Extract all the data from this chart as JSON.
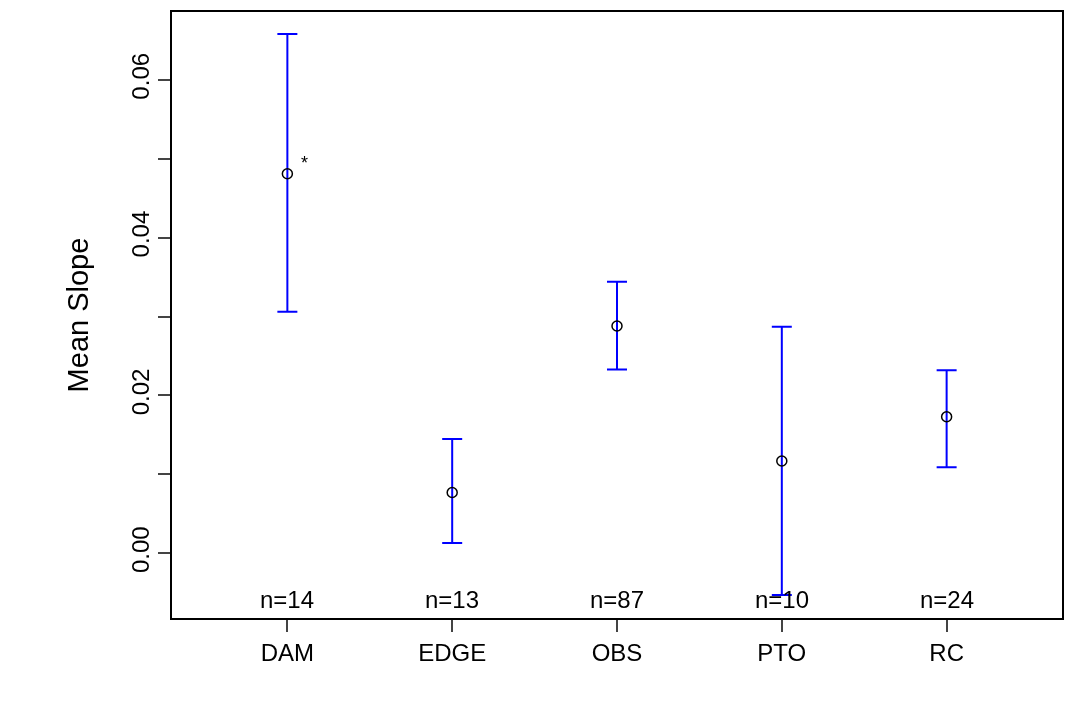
{
  "chart_data": {
    "type": "scatter",
    "ylabel": "Mean Slope",
    "categories": [
      "DAM",
      "EDGE",
      "OBS",
      "PTO",
      "RC"
    ],
    "series": [
      {
        "color": "#000000",
        "values": [
          0.0481,
          0.0077,
          0.0288,
          0.0117,
          0.0173
        ],
        "errors": [
          [
            0.0306,
            0.0658
          ],
          [
            0.0013,
            0.0145
          ],
          [
            0.0233,
            0.0344
          ],
          [
            -0.0053,
            0.0287
          ],
          [
            0.0109,
            0.0232
          ]
        ]
      }
    ],
    "marker": "circle",
    "grid": false,
    "ylim": [
      -0.0082,
      0.0686
    ],
    "yticks": [
      {
        "value": 0,
        "label": "0.00"
      },
      {
        "value": 0.01,
        "label": null
      },
      {
        "value": 0.02,
        "label": "0.02"
      },
      {
        "value": 0.03,
        "label": null
      },
      {
        "value": 0.04,
        "label": "0.04"
      },
      {
        "value": 0.05,
        "label": null
      },
      {
        "value": 0.06,
        "label": "0.06"
      }
    ],
    "annotations": [
      {
        "text": "*",
        "x": "DAM",
        "y": 0.0495
      },
      "n=14",
      "n=13",
      "n=87",
      "n=10",
      "n=24"
    ]
  }
}
